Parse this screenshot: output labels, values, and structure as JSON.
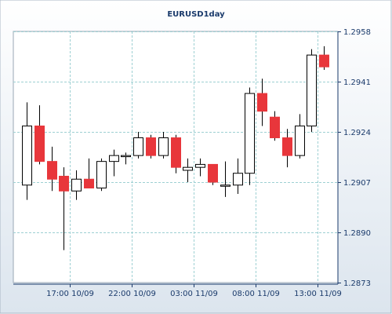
{
  "chart_data": {
    "type": "candlestick",
    "title": "EURUSD1day",
    "y_axis": {
      "position": "right",
      "ticks": [
        "1.2958",
        "1.2941",
        "1.2924",
        "1.2907",
        "1.2890",
        "1.2873"
      ],
      "tick_values": [
        1.2958,
        1.2941,
        1.2924,
        1.2907,
        1.289,
        1.2873
      ],
      "range": [
        1.2873,
        1.2958
      ]
    },
    "x_axis": {
      "ticks": [
        "17:00 10/09",
        "22:00 10/09",
        "03:00 11/09",
        "08:00 11/09",
        "13:00 11/09"
      ],
      "tick_candle_index": [
        3.5,
        8.5,
        13.5,
        18.5,
        23.5
      ]
    },
    "grid": true,
    "colors": {
      "background_top": "#ffffff",
      "background_bottom": "#dce5ee",
      "up_fill": "#ffffff",
      "down_fill": "#e8363b",
      "outline": "#000000",
      "grid": "#9ed0d3",
      "axis_text": "#1a3a6b"
    },
    "candles": [
      {
        "open": 1.2906,
        "high": 1.2934,
        "low": 1.2901,
        "close": 1.2926
      },
      {
        "open": 1.2926,
        "high": 1.2933,
        "low": 1.2913,
        "close": 1.2914
      },
      {
        "open": 1.2914,
        "high": 1.2919,
        "low": 1.2904,
        "close": 1.2908
      },
      {
        "open": 1.2909,
        "high": 1.2912,
        "low": 1.2884,
        "close": 1.2904
      },
      {
        "open": 1.2904,
        "high": 1.2911,
        "low": 1.2901,
        "close": 1.2908
      },
      {
        "open": 1.2908,
        "high": 1.2915,
        "low": 1.2905,
        "close": 1.2905
      },
      {
        "open": 1.2905,
        "high": 1.2915,
        "low": 1.2904,
        "close": 1.2914
      },
      {
        "open": 1.2914,
        "high": 1.2918,
        "low": 1.2909,
        "close": 1.2916
      },
      {
        "open": 1.2916,
        "high": 1.2917,
        "low": 1.2913,
        "close": 1.2916
      },
      {
        "open": 1.2916,
        "high": 1.2924,
        "low": 1.2915,
        "close": 1.2922
      },
      {
        "open": 1.2922,
        "high": 1.2923,
        "low": 1.2915,
        "close": 1.2916
      },
      {
        "open": 1.2916,
        "high": 1.2924,
        "low": 1.2915,
        "close": 1.2922
      },
      {
        "open": 1.2922,
        "high": 1.2923,
        "low": 1.291,
        "close": 1.2912
      },
      {
        "open": 1.2911,
        "high": 1.2915,
        "low": 1.2907,
        "close": 1.2912
      },
      {
        "open": 1.2912,
        "high": 1.2915,
        "low": 1.2909,
        "close": 1.2913
      },
      {
        "open": 1.2913,
        "high": 1.2913,
        "low": 1.2906,
        "close": 1.2907
      },
      {
        "open": 1.2906,
        "high": 1.2914,
        "low": 1.2902,
        "close": 1.2906
      },
      {
        "open": 1.2906,
        "high": 1.2915,
        "low": 1.2903,
        "close": 1.291
      },
      {
        "open": 1.291,
        "high": 1.2939,
        "low": 1.2906,
        "close": 1.2937
      },
      {
        "open": 1.2937,
        "high": 1.2942,
        "low": 1.2926,
        "close": 1.2931
      },
      {
        "open": 1.2929,
        "high": 1.2931,
        "low": 1.2921,
        "close": 1.2922
      },
      {
        "open": 1.2922,
        "high": 1.2925,
        "low": 1.2912,
        "close": 1.2916
      },
      {
        "open": 1.2916,
        "high": 1.293,
        "low": 1.2915,
        "close": 1.2926
      },
      {
        "open": 1.2926,
        "high": 1.2952,
        "low": 1.2924,
        "close": 1.295
      },
      {
        "open": 1.295,
        "high": 1.2953,
        "low": 1.2945,
        "close": 1.2946
      }
    ]
  }
}
